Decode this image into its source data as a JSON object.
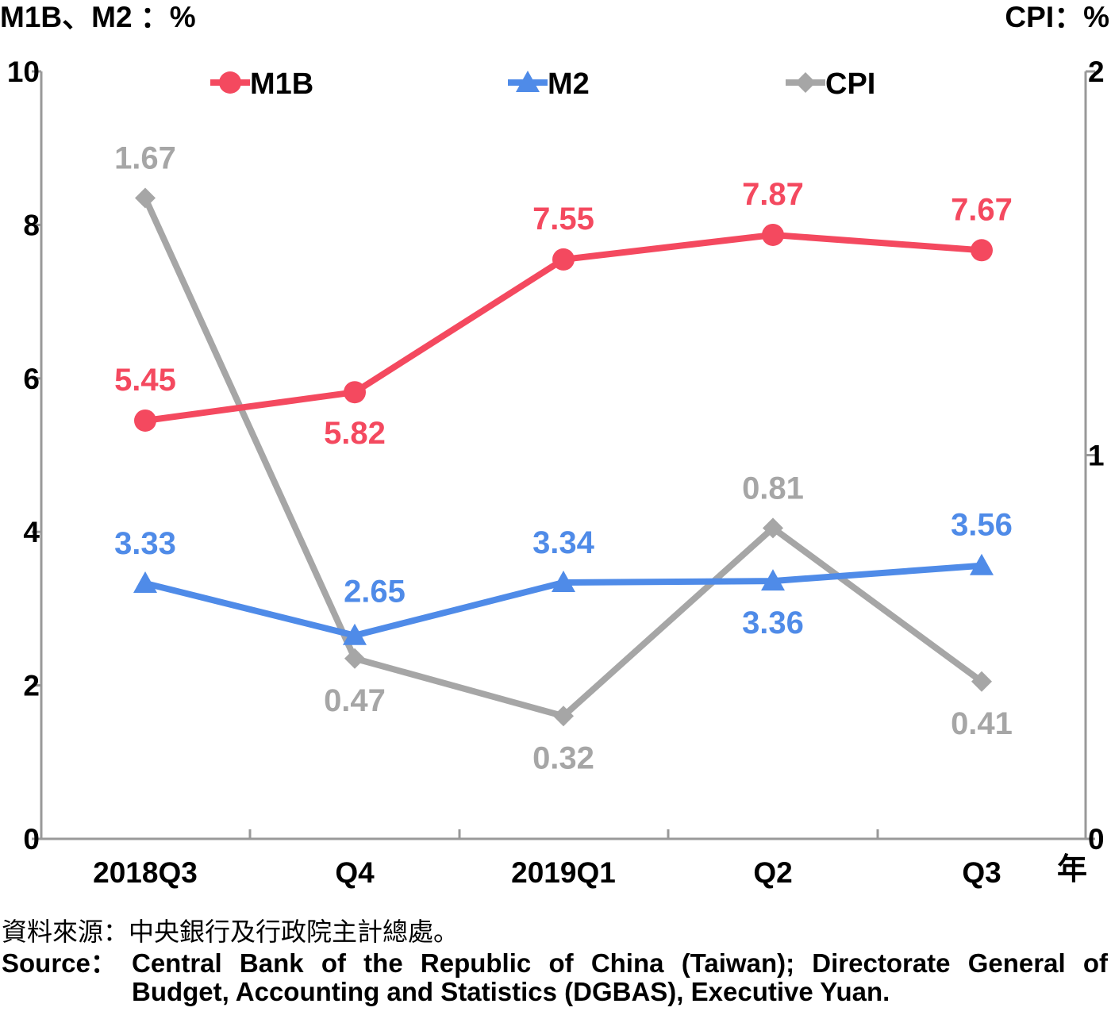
{
  "chart_data": {
    "type": "line",
    "left_axis_title": "M1B、M2 ：%",
    "right_axis_title": "CPI：%",
    "x_unit": "年",
    "categories": [
      "2018Q3",
      "Q4",
      "2019Q1",
      "Q2",
      "Q3"
    ],
    "y_left": {
      "lim": [
        0,
        10
      ],
      "ticks": [
        "0",
        "2",
        "4",
        "6",
        "8",
        "10"
      ]
    },
    "y_right": {
      "lim": [
        0,
        2
      ],
      "ticks": [
        "0",
        "1",
        "2"
      ]
    },
    "series": [
      {
        "name": "M1B",
        "axis": "left",
        "color": "#f4495f",
        "marker": "circle",
        "values": [
          5.45,
          5.82,
          7.55,
          7.87,
          7.67
        ],
        "labels": [
          "5.45",
          "5.82",
          "7.55",
          "7.87",
          "7.67"
        ]
      },
      {
        "name": "M2",
        "axis": "left",
        "color": "#4f8be8",
        "marker": "triangle",
        "values": [
          3.33,
          2.65,
          3.34,
          3.36,
          3.56
        ],
        "labels": [
          "3.33",
          "2.65",
          "3.34",
          "3.36",
          "3.56"
        ]
      },
      {
        "name": "CPI",
        "axis": "right",
        "color": "#a6a6a6",
        "marker": "diamond",
        "values": [
          1.67,
          0.47,
          0.32,
          0.81,
          0.41
        ],
        "labels": [
          "1.67",
          "0.47",
          "0.32",
          "0.81",
          "0.41"
        ]
      }
    ],
    "grid": false,
    "legend_position": "top"
  },
  "source": {
    "zh": "資料來源：中央銀行及行政院主計總處。",
    "en_label": "Source：",
    "en_text": "Central Bank of the Republic of China (Taiwan); Directorate General of Budget, Accounting and Statistics (DGBAS), Executive Yuan."
  }
}
